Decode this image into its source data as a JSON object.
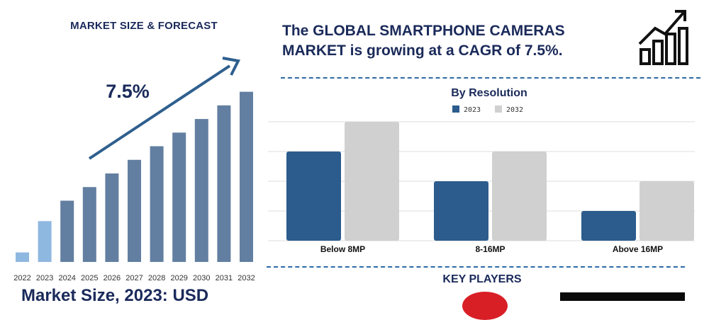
{
  "left_panel": {
    "title": "MARKET SIZE & FORECAST",
    "cagr_label": "7.5%",
    "market_size_text": "Market Size, 2023: USD"
  },
  "headline": {
    "text": "The GLOBAL SMARTPHONE CAMERAS MARKET is growing at a CAGR of 7.5%."
  },
  "icons": {
    "trend": "bar-chart-growth-icon"
  },
  "key_players": {
    "title": "KEY PLAYERS"
  },
  "colors": {
    "navy": "#1a2a5a",
    "bar_forecast": "#627fa1",
    "bar_highlight": "#8fb8e0",
    "arrow": "#2e5f8e",
    "series_2023": "#2b5c8d",
    "series_2032": "#d0d0d0",
    "divider": "#2e6aa6",
    "logo_red": "#d91f26"
  },
  "chart_data": [
    {
      "type": "bar",
      "title": "",
      "categories": [
        "2022",
        "2023",
        "2024",
        "2025",
        "2026",
        "2027",
        "2028",
        "2029",
        "2030",
        "2031",
        "2032"
      ],
      "values": [
        7,
        30,
        45,
        55,
        65,
        75,
        85,
        95,
        105,
        115,
        125
      ],
      "highlight": [
        true,
        true,
        false,
        false,
        false,
        false,
        false,
        false,
        false,
        false,
        false
      ],
      "annotation": "7.5%",
      "ylim": [
        0,
        130
      ],
      "xlabel": "",
      "ylabel": "",
      "grid": false,
      "legend": "none"
    },
    {
      "type": "bar",
      "title": "By Resolution",
      "categories": [
        "Below 8MP",
        "8-16MP",
        "Above 16MP"
      ],
      "series": [
        {
          "name": "2023",
          "values": [
            30,
            20,
            10
          ]
        },
        {
          "name": "2032",
          "values": [
            40,
            30,
            20
          ]
        }
      ],
      "ylim": [
        0,
        40
      ],
      "xlabel": "",
      "ylabel": "",
      "grid": true,
      "legend": "top-center"
    }
  ]
}
